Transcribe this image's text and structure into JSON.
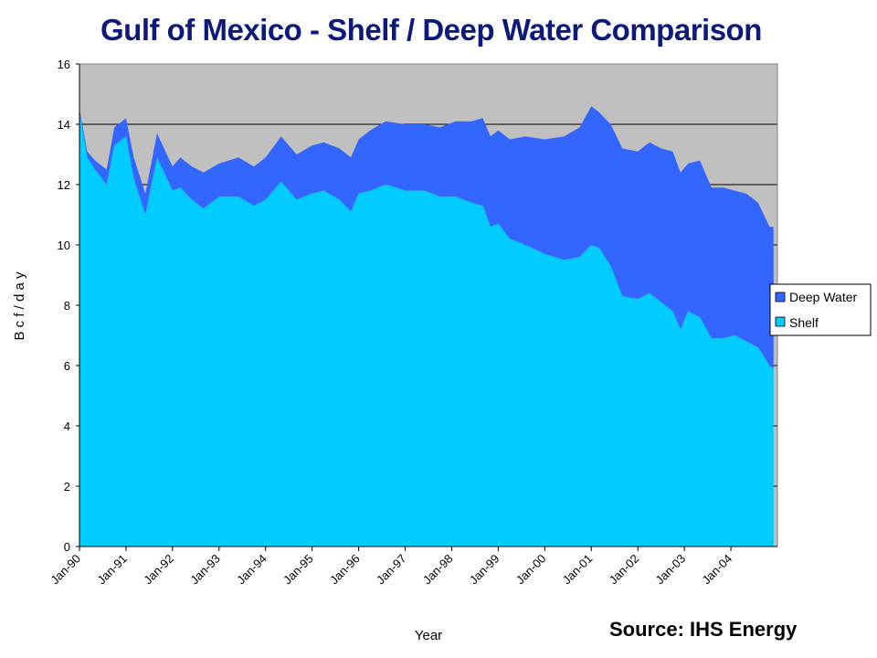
{
  "chart_data": {
    "type": "area",
    "stacked": true,
    "title": "Gulf of Mexico - Shelf / Deep Water Comparison",
    "xlabel": "Year",
    "ylabel": "B c f / d a y",
    "source": "Source: IHS Energy",
    "ylim": [
      0,
      16
    ],
    "yticks": [
      "0",
      "2",
      "4",
      "6",
      "8",
      "10",
      "12",
      "14",
      "16"
    ],
    "xticks": [
      "Jan-90",
      "Jan-91",
      "Jan-92",
      "Jan-93",
      "Jan-94",
      "Jan-95",
      "Jan-96",
      "Jan-97",
      "Jan-98",
      "Jan-99",
      "Jan-00",
      "Jan-01",
      "Jan-02",
      "Jan-03",
      "Jan-04"
    ],
    "grid": "horizontal",
    "legend_position": "right",
    "x": [
      "1990-01",
      "1990-03",
      "1990-05",
      "1990-08",
      "1990-10",
      "1991-01",
      "1991-03",
      "1991-06",
      "1991-09",
      "1992-01",
      "1992-03",
      "1992-06",
      "1992-09",
      "1993-01",
      "1993-06",
      "1993-10",
      "1994-01",
      "1994-05",
      "1994-09",
      "1995-01",
      "1995-04",
      "1995-08",
      "1995-11",
      "1996-01",
      "1996-04",
      "1996-08",
      "1997-01",
      "1997-06",
      "1997-10",
      "1998-02",
      "1998-06",
      "1998-09",
      "1998-11",
      "1999-01",
      "1999-04",
      "1999-08",
      "2000-01",
      "2000-06",
      "2000-10",
      "2001-01",
      "2001-03",
      "2001-06",
      "2001-09",
      "2002-01",
      "2002-04",
      "2002-07",
      "2002-10",
      "2002-12",
      "2003-02",
      "2003-05",
      "2003-08",
      "2003-11",
      "2004-02",
      "2004-05",
      "2004-08",
      "2004-11",
      "2004-12"
    ],
    "series": [
      {
        "name": "Deep Water",
        "color": "#3366ff",
        "values": [
          0.1,
          0.2,
          0.3,
          0.5,
          0.6,
          0.6,
          0.7,
          0.7,
          0.8,
          0.8,
          1.0,
          1.1,
          1.2,
          1.1,
          1.3,
          1.3,
          1.4,
          1.5,
          1.5,
          1.6,
          1.6,
          1.7,
          1.8,
          1.8,
          2.0,
          2.1,
          2.2,
          2.2,
          2.3,
          2.5,
          2.7,
          2.9,
          3.0,
          3.1,
          3.3,
          3.6,
          3.8,
          4.1,
          4.3,
          4.6,
          4.5,
          4.7,
          4.9,
          4.9,
          5.0,
          5.1,
          5.3,
          5.2,
          4.9,
          5.2,
          5.0,
          5.0,
          4.8,
          4.9,
          4.8,
          4.6,
          4.7
        ]
      },
      {
        "name": "Shelf",
        "color": "#00ccff",
        "values": [
          14.4,
          12.9,
          12.5,
          12.0,
          13.3,
          13.6,
          12.2,
          11.0,
          12.9,
          11.8,
          11.9,
          11.5,
          11.2,
          11.6,
          11.6,
          11.3,
          11.5,
          12.1,
          11.5,
          11.7,
          11.8,
          11.5,
          11.1,
          11.7,
          11.8,
          12.0,
          11.8,
          11.8,
          11.6,
          11.6,
          11.4,
          11.3,
          10.6,
          10.7,
          10.2,
          10.0,
          9.7,
          9.5,
          9.6,
          10.0,
          9.9,
          9.3,
          8.3,
          8.2,
          8.4,
          8.1,
          7.8,
          7.2,
          7.8,
          7.6,
          6.9,
          6.9,
          7.0,
          6.8,
          6.6,
          6.0,
          5.9
        ]
      }
    ]
  }
}
